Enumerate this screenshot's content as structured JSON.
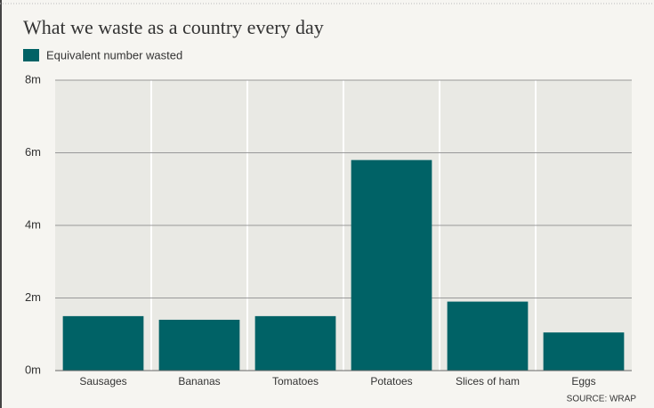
{
  "chart_data": {
    "type": "bar",
    "title": "What we waste as a country every day",
    "categories": [
      "Sausages",
      "Bananas",
      "Tomatoes",
      "Potatoes",
      "Slices of ham",
      "Eggs"
    ],
    "series": [
      {
        "name": "Equivalent number wasted",
        "color": "#006266",
        "values": [
          1500000,
          1400000,
          1500000,
          5800000,
          1900000,
          1050000
        ]
      }
    ],
    "ylim": [
      0,
      8000000
    ],
    "yticks": [
      {
        "value": 0,
        "label": "0m"
      },
      {
        "value": 2000000,
        "label": "2m"
      },
      {
        "value": 4000000,
        "label": "4m"
      },
      {
        "value": 6000000,
        "label": "6m"
      },
      {
        "value": 8000000,
        "label": "8m"
      }
    ],
    "grid": true,
    "source": "SOURCE: WRAP"
  }
}
